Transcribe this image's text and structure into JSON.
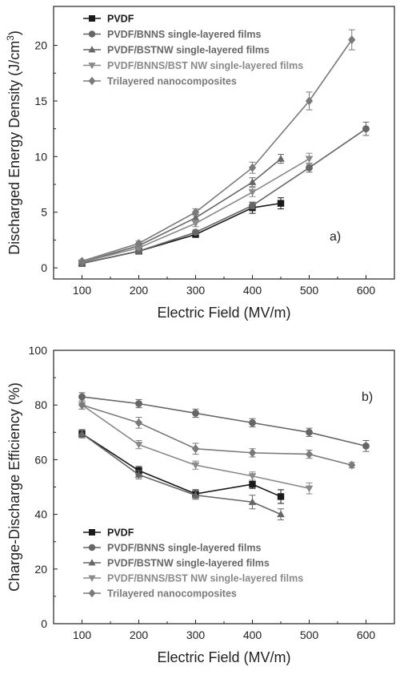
{
  "colors": {
    "PVDF": "#1a1a1a",
    "BNNS": "#666666",
    "BSTNW": "#666666",
    "BNNS_BST": "#8a8a8a",
    "Trilayered": "#7a7a7a"
  },
  "chart_data": [
    {
      "type": "line",
      "panel_label": "a)",
      "xlabel": "Electric Field (MV/m)",
      "ylabel": "Discharged Energy Density (J/cm",
      "ylabel_sup": "3",
      "ylabel_end": ")",
      "xlim": [
        50,
        650
      ],
      "ylim": [
        -1,
        23.5
      ],
      "xticks": [
        100,
        200,
        300,
        400,
        500,
        600
      ],
      "yticks": [
        0,
        5,
        10,
        15,
        20
      ],
      "legend_position": "top-left",
      "series": [
        {
          "name": "PVDF",
          "marker": "square",
          "color": "#1a1a1a",
          "x": [
            100,
            200,
            300,
            400,
            450
          ],
          "y": [
            0.4,
            1.5,
            3.0,
            5.4,
            5.8
          ],
          "err": [
            0.1,
            0.15,
            0.2,
            0.5,
            0.5
          ]
        },
        {
          "name": "PVDF/BNNS single-layered films",
          "marker": "circle",
          "color": "#666666",
          "x": [
            100,
            200,
            300,
            400,
            500,
            600
          ],
          "y": [
            0.4,
            1.5,
            3.2,
            5.6,
            9.0,
            12.5
          ],
          "err": [
            0.1,
            0.15,
            0.2,
            0.3,
            0.4,
            0.6
          ]
        },
        {
          "name": "PVDF/BSTNW single-layered films",
          "marker": "triangle-up",
          "color": "#666666",
          "x": [
            100,
            200,
            300,
            400,
            450
          ],
          "y": [
            0.5,
            2.0,
            4.5,
            7.7,
            9.8
          ],
          "err": [
            0.1,
            0.15,
            0.3,
            0.4,
            0.4
          ]
        },
        {
          "name": "PVDF/BNNS/BST NW single-layered films",
          "marker": "triangle-down",
          "color": "#8a8a8a",
          "x": [
            100,
            200,
            300,
            400,
            500
          ],
          "y": [
            0.5,
            1.8,
            4.0,
            6.8,
            9.8
          ],
          "err": [
            0.1,
            0.15,
            0.3,
            0.4,
            0.5
          ]
        },
        {
          "name": "Trilayered nanocomposites",
          "marker": "diamond",
          "color": "#7a7a7a",
          "x": [
            100,
            200,
            300,
            400,
            500,
            575
          ],
          "y": [
            0.6,
            2.2,
            5.0,
            9.0,
            15.0,
            20.5
          ],
          "err": [
            0.1,
            0.2,
            0.3,
            0.5,
            0.8,
            0.9
          ]
        }
      ]
    },
    {
      "type": "line",
      "panel_label": "b)",
      "xlabel": "Electric Field (MV/m)",
      "ylabel": "Charge-Discharge Efficiency (%)",
      "xlim": [
        50,
        650
      ],
      "ylim": [
        0,
        100
      ],
      "xticks": [
        100,
        200,
        300,
        400,
        500,
        600
      ],
      "yticks": [
        0,
        20,
        40,
        60,
        80,
        100
      ],
      "legend_position": "bottom-left",
      "series": [
        {
          "name": "PVDF",
          "marker": "square",
          "color": "#1a1a1a",
          "x": [
            100,
            200,
            300,
            400,
            450
          ],
          "y": [
            69.5,
            56,
            47.5,
            51,
            46.5
          ],
          "err": [
            1.5,
            1.5,
            1.5,
            1.5,
            2.5
          ]
        },
        {
          "name": "PVDF/BNNS single-layered films",
          "marker": "circle",
          "color": "#666666",
          "x": [
            100,
            200,
            300,
            400,
            500,
            600
          ],
          "y": [
            83,
            80.5,
            77,
            73.5,
            70,
            65
          ],
          "err": [
            1.5,
            1.5,
            1.5,
            1.5,
            1.5,
            2
          ]
        },
        {
          "name": "PVDF/BSTNW single-layered films",
          "marker": "triangle-up",
          "color": "#666666",
          "x": [
            100,
            200,
            300,
            400,
            450
          ],
          "y": [
            69.5,
            54.5,
            47,
            44.5,
            40
          ],
          "err": [
            1.5,
            1.5,
            1.5,
            2.5,
            2
          ]
        },
        {
          "name": "PVDF/BNNS/BST NW single-layered films",
          "marker": "triangle-down",
          "color": "#8a8a8a",
          "x": [
            100,
            200,
            300,
            400,
            500
          ],
          "y": [
            80,
            65.5,
            58,
            54,
            49.5
          ],
          "err": [
            1.5,
            1.5,
            1.5,
            1.5,
            2
          ]
        },
        {
          "name": "Trilayered nanocomposites",
          "marker": "diamond",
          "color": "#7a7a7a",
          "x": [
            100,
            200,
            300,
            400,
            500,
            575
          ],
          "y": [
            80,
            73.5,
            64,
            62.5,
            62,
            58
          ],
          "err": [
            1.5,
            2,
            2,
            1.5,
            1.5,
            1
          ]
        }
      ]
    }
  ]
}
